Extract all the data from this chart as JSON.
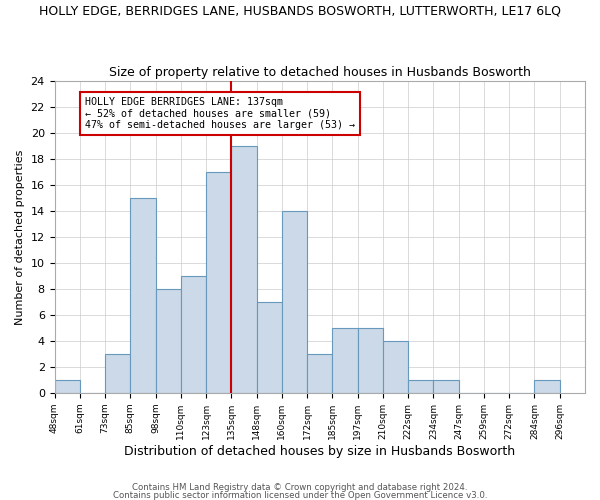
{
  "title": "HOLLY EDGE, BERRIDGES LANE, HUSBANDS BOSWORTH, LUTTERWORTH, LE17 6LQ",
  "subtitle": "Size of property relative to detached houses in Husbands Bosworth",
  "xlabel": "Distribution of detached houses by size in Husbands Bosworth",
  "ylabel": "Number of detached properties",
  "footer1": "Contains HM Land Registry data © Crown copyright and database right 2024.",
  "footer2": "Contains public sector information licensed under the Open Government Licence v3.0.",
  "bins": [
    "48sqm",
    "61sqm",
    "73sqm",
    "85sqm",
    "98sqm",
    "110sqm",
    "123sqm",
    "135sqm",
    "148sqm",
    "160sqm",
    "172sqm",
    "185sqm",
    "197sqm",
    "210sqm",
    "222sqm",
    "234sqm",
    "247sqm",
    "259sqm",
    "272sqm",
    "284sqm",
    "296sqm"
  ],
  "values": [
    1,
    0,
    3,
    15,
    8,
    9,
    17,
    19,
    7,
    14,
    3,
    5,
    5,
    4,
    1,
    1,
    0,
    0,
    0,
    1
  ],
  "bar_color": "#ccd9e8",
  "bar_edge_color": "#6699bb",
  "ylim": [
    0,
    24
  ],
  "yticks": [
    0,
    2,
    4,
    6,
    8,
    10,
    12,
    14,
    16,
    18,
    20,
    22,
    24
  ],
  "marker_bin_label": "135sqm",
  "marker_label_line1": "HOLLY EDGE BERRIDGES LANE: 137sqm",
  "marker_label_line2": "← 52% of detached houses are smaller (59)",
  "marker_label_line3": "47% of semi-detached houses are larger (53) →",
  "annotation_box_color": "#ffffff",
  "annotation_box_edge": "#cc0000",
  "marker_line_color": "#cc0000"
}
